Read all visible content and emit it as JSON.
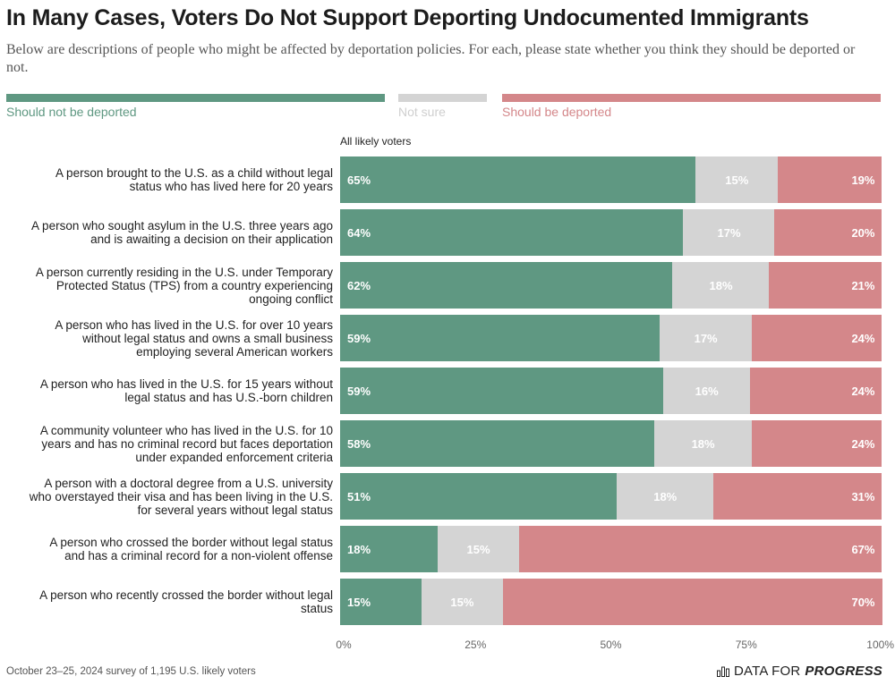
{
  "title": "In Many Cases, Voters Do Not Support Deporting Undocumented Immigrants",
  "subtitle": "Below are descriptions of people who might be affected by deportation policies. For each, please state whether you think they should be deported or not.",
  "footer": "October 23–25, 2024 survey of 1,195 U.S. likely voters",
  "brand": {
    "prefix": "DATA FOR",
    "strong": "PROGRESS",
    "icon": "bar-chart-icon"
  },
  "colors": {
    "not_deported": "#5f9882",
    "not_sure": "#d4d4d4",
    "deported": "#d4878a"
  },
  "chart_data": {
    "type": "bar",
    "orientation": "horizontal",
    "stacked": true,
    "group_label": "All likely voters",
    "xlim": [
      0,
      100
    ],
    "x_ticks": [
      "0%",
      "25%",
      "50%",
      "75%",
      "100%"
    ],
    "legend_placement": "top",
    "series": [
      {
        "name": "Should not be deported",
        "values": [
          65,
          64,
          62,
          59,
          59,
          58,
          51,
          18,
          15
        ]
      },
      {
        "name": "Not sure",
        "values": [
          15,
          17,
          18,
          17,
          16,
          18,
          18,
          15,
          15
        ]
      },
      {
        "name": "Should be deported",
        "values": [
          19,
          20,
          21,
          24,
          24,
          24,
          31,
          67,
          70
        ]
      }
    ],
    "categories": [
      [
        "A person brought to the U.S. as a child without legal",
        "status who has lived here for 20 years"
      ],
      [
        "A person who sought asylum in the U.S. three years ago",
        "and is awaiting a decision on their application"
      ],
      [
        "A person currently residing in the U.S. under Temporary",
        "Protected Status (TPS) from a country experiencing",
        "ongoing conflict"
      ],
      [
        "A person who has lived in the U.S. for over 10 years",
        "without legal status and owns a small business",
        "employing several American workers"
      ],
      [
        "A person who has lived in the U.S. for 15 years without",
        "legal status and has U.S.-born children"
      ],
      [
        "A community volunteer who has lived in the U.S. for 10",
        "years and has no criminal record but faces deportation",
        "under expanded enforcement criteria"
      ],
      [
        "A person with a doctoral degree from a U.S. university",
        "who overstayed their visa and has been living in the U.S.",
        "for several years without legal status"
      ],
      [
        "A person who crossed the border without legal status",
        "and has a criminal record for a non-violent offense"
      ],
      [
        "A person who recently crossed the border without legal",
        "status"
      ]
    ]
  }
}
